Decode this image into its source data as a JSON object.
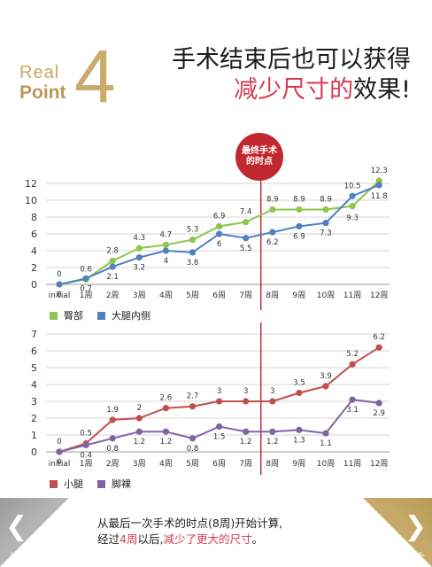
{
  "header": {
    "real": "Real",
    "point": "Point",
    "number": "4",
    "headline_line1": "手术结束后也可以获得",
    "headline_line2_accent": "减少尺寸的",
    "headline_line2_rest": "效果!"
  },
  "marker": {
    "label_line1": "最终手术",
    "label_line2": "的时点",
    "color": "#c0282f"
  },
  "colors": {
    "gold": "#c9ab6c",
    "accent_pink": "#d63a53",
    "hips": "#8dc64c",
    "thigh": "#4f81bd",
    "calf": "#c0504d",
    "ankle": "#8064a2"
  },
  "chart_data": [
    {
      "type": "line",
      "categories": [
        "initial",
        "1周",
        "2周",
        "3周",
        "4周",
        "5周",
        "6周",
        "7周",
        "8周",
        "9周",
        "10周",
        "11周",
        "12周"
      ],
      "ylim": [
        0,
        12
      ],
      "yticks": [
        0,
        2,
        4,
        6,
        8,
        10,
        12
      ],
      "grid": true,
      "legend": "bottom-left",
      "series": [
        {
          "name": "臀部",
          "color": "#8dc64c",
          "values": [
            0,
            0.6,
            2.8,
            4.3,
            4.7,
            5.3,
            6.9,
            7.4,
            8.9,
            8.9,
            8.9,
            9.3,
            12.3
          ]
        },
        {
          "name": "大腿内侧",
          "color": "#4f81bd",
          "values": [
            0,
            0.7,
            2.1,
            3.2,
            4,
            3.8,
            6,
            5.5,
            6.2,
            6.9,
            7.3,
            10.5,
            11.8
          ]
        }
      ]
    },
    {
      "type": "line",
      "categories": [
        "initial",
        "1周",
        "2周",
        "3周",
        "4周",
        "5周",
        "6周",
        "7周",
        "8周",
        "9周",
        "10周",
        "11周",
        "12周"
      ],
      "ylim": [
        0,
        7
      ],
      "yticks": [
        0,
        1,
        2,
        3,
        4,
        5,
        6,
        7
      ],
      "grid": true,
      "legend": "bottom-left",
      "series": [
        {
          "name": "小腿",
          "color": "#c0504d",
          "values": [
            0,
            0.5,
            1.9,
            2,
            2.6,
            2.7,
            3,
            3,
            3,
            3.5,
            3.9,
            5.2,
            6.2
          ]
        },
        {
          "name": "脚裸",
          "color": "#8064a2",
          "values": [
            0,
            0.4,
            0.8,
            1.2,
            1.2,
            0.8,
            1.5,
            1.2,
            1.2,
            1.3,
            1.1,
            3.1,
            2.9
          ]
        }
      ]
    }
  ],
  "footer": {
    "prev_label": "上一个",
    "next_label": "下一个",
    "prev_icon": "chevron-left-icon",
    "next_icon": "chevron-right-icon",
    "caption_line1": "从最后一次手术的时点(8周)开始计算,",
    "caption_line2_pre": "经过",
    "caption_line2_red1": "4周",
    "caption_line2_mid": "以后,",
    "caption_line2_red2": "减少了更大的尺寸",
    "caption_line2_end": "。"
  }
}
